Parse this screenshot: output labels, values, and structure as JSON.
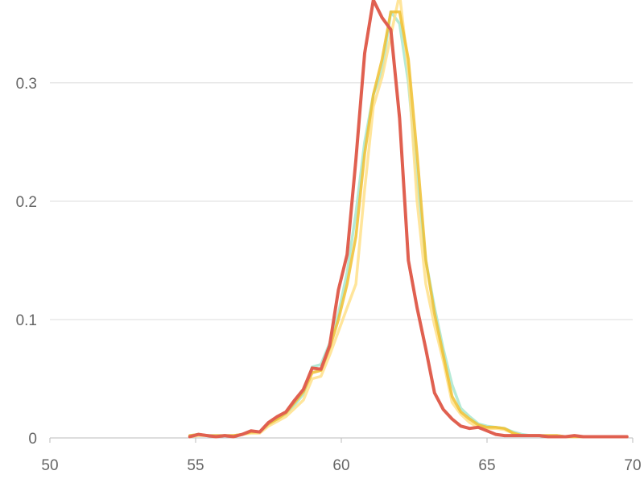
{
  "chart_data": {
    "type": "line",
    "title": "",
    "xlabel": "",
    "ylabel": "",
    "xlim": [
      50,
      70
    ],
    "ylim": [
      0,
      0.37
    ],
    "x_ticks": [
      50,
      55,
      60,
      65,
      70
    ],
    "x_tick_labels": [
      "50",
      "55",
      "60",
      "65",
      "70"
    ],
    "y_ticks": [
      0,
      0.1,
      0.2,
      0.3
    ],
    "y_tick_labels": [
      "0",
      "0.1",
      "0.2",
      "0.3"
    ],
    "grid": "horizontal",
    "legend": "none",
    "x": [
      54.8,
      55.1,
      55.4,
      55.7,
      56.0,
      56.3,
      56.6,
      56.9,
      57.2,
      57.5,
      57.8,
      58.1,
      58.4,
      58.7,
      59.0,
      59.3,
      59.6,
      59.9,
      60.2,
      60.5,
      60.8,
      61.1,
      61.4,
      61.7,
      62.0,
      62.3,
      62.6,
      62.9,
      63.2,
      63.5,
      63.8,
      64.1,
      64.4,
      64.7,
      65.0,
      65.3,
      65.6,
      65.9,
      66.2,
      66.5,
      66.8,
      67.1,
      67.4,
      67.7,
      68.0,
      68.3,
      68.6,
      68.9,
      69.2,
      69.5,
      69.8
    ],
    "series": [
      {
        "color": "#a8e6cf",
        "values": [
          0.002,
          0.003,
          0.002,
          0.002,
          0.002,
          0.002,
          0.003,
          0.005,
          0.005,
          0.011,
          0.016,
          0.02,
          0.028,
          0.037,
          0.06,
          0.062,
          0.08,
          0.105,
          0.14,
          0.19,
          0.25,
          0.29,
          0.31,
          0.36,
          0.35,
          0.3,
          0.22,
          0.15,
          0.11,
          0.075,
          0.045,
          0.025,
          0.018,
          0.012,
          0.01,
          0.009,
          0.008,
          0.005,
          0.003,
          0.002,
          0.002,
          0.002,
          0.002,
          0.001,
          0.001,
          0.001,
          0.001,
          0.001,
          0.001,
          0.001,
          0.001
        ]
      },
      {
        "color": "#ffe08a",
        "values": [
          0.001,
          0.002,
          0.002,
          0.001,
          0.002,
          0.002,
          0.003,
          0.004,
          0.004,
          0.01,
          0.014,
          0.018,
          0.025,
          0.032,
          0.05,
          0.052,
          0.07,
          0.09,
          0.11,
          0.13,
          0.21,
          0.28,
          0.305,
          0.34,
          0.375,
          0.31,
          0.2,
          0.13,
          0.095,
          0.065,
          0.03,
          0.02,
          0.013,
          0.009,
          0.008,
          0.008,
          0.007,
          0.004,
          0.002,
          0.002,
          0.002,
          0.002,
          0.002,
          0.001,
          0.001,
          0.001,
          0.001,
          0.001,
          0.001,
          0.001,
          0.001
        ]
      },
      {
        "color": "#f0c030",
        "values": [
          0.002,
          0.003,
          0.002,
          0.002,
          0.002,
          0.002,
          0.003,
          0.005,
          0.005,
          0.012,
          0.016,
          0.021,
          0.03,
          0.039,
          0.055,
          0.057,
          0.076,
          0.1,
          0.13,
          0.17,
          0.24,
          0.29,
          0.32,
          0.36,
          0.36,
          0.32,
          0.24,
          0.15,
          0.105,
          0.07,
          0.035,
          0.022,
          0.016,
          0.011,
          0.009,
          0.009,
          0.008,
          0.004,
          0.002,
          0.002,
          0.002,
          0.002,
          0.002,
          0.001,
          0.001,
          0.001,
          0.001,
          0.001,
          0.001,
          0.001,
          0.001
        ]
      },
      {
        "color": "#e06050",
        "values": [
          0.001,
          0.003,
          0.002,
          0.001,
          0.002,
          0.001,
          0.003,
          0.006,
          0.005,
          0.013,
          0.018,
          0.022,
          0.032,
          0.041,
          0.059,
          0.058,
          0.078,
          0.125,
          0.155,
          0.235,
          0.325,
          0.37,
          0.355,
          0.345,
          0.27,
          0.15,
          0.11,
          0.075,
          0.038,
          0.024,
          0.016,
          0.01,
          0.008,
          0.009,
          0.006,
          0.003,
          0.002,
          0.002,
          0.002,
          0.002,
          0.002,
          0.001,
          0.001,
          0.001,
          0.002,
          0.001,
          0.001,
          0.001,
          0.001,
          0.001,
          0.001
        ]
      }
    ]
  }
}
